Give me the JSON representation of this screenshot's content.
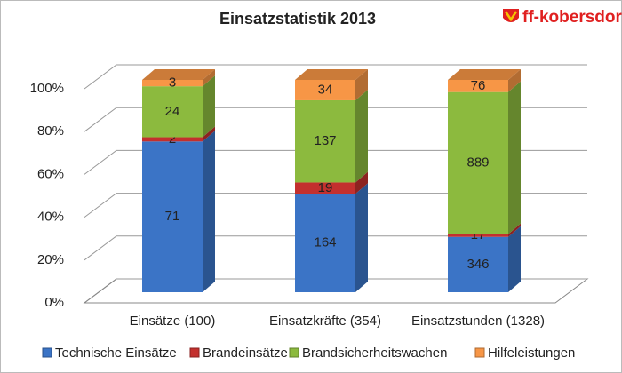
{
  "chart_data": {
    "type": "bar",
    "stacking": "percent",
    "title": "Einsatzstatistik 2013",
    "logo": "ff-kobersdorf.at",
    "categories": [
      "Einsätze (100)",
      "Einsatzkräfte (354)",
      "Einsatzstunden (1328)"
    ],
    "series": [
      {
        "name": "Technische Einsätze",
        "color": "#3b74c6",
        "values": [
          71,
          164,
          346
        ]
      },
      {
        "name": "Brandeinsätze",
        "color": "#c3302e",
        "values": [
          2,
          19,
          17
        ]
      },
      {
        "name": "Brandsicherheitswachen",
        "color": "#8cba3e",
        "values": [
          24,
          137,
          889
        ]
      },
      {
        "name": "Hilfeleistungen",
        "color": "#f79646",
        "values": [
          3,
          34,
          76
        ]
      }
    ],
    "ylim": [
      0,
      100
    ],
    "yticks": [
      {
        "value": 0,
        "label": "0%"
      },
      {
        "value": 20,
        "label": "20%"
      },
      {
        "value": 40,
        "label": "40%"
      },
      {
        "value": 60,
        "label": "60%"
      },
      {
        "value": 80,
        "label": "80%"
      },
      {
        "value": 100,
        "label": "100%"
      }
    ],
    "grid": true,
    "legend": "bottom"
  }
}
